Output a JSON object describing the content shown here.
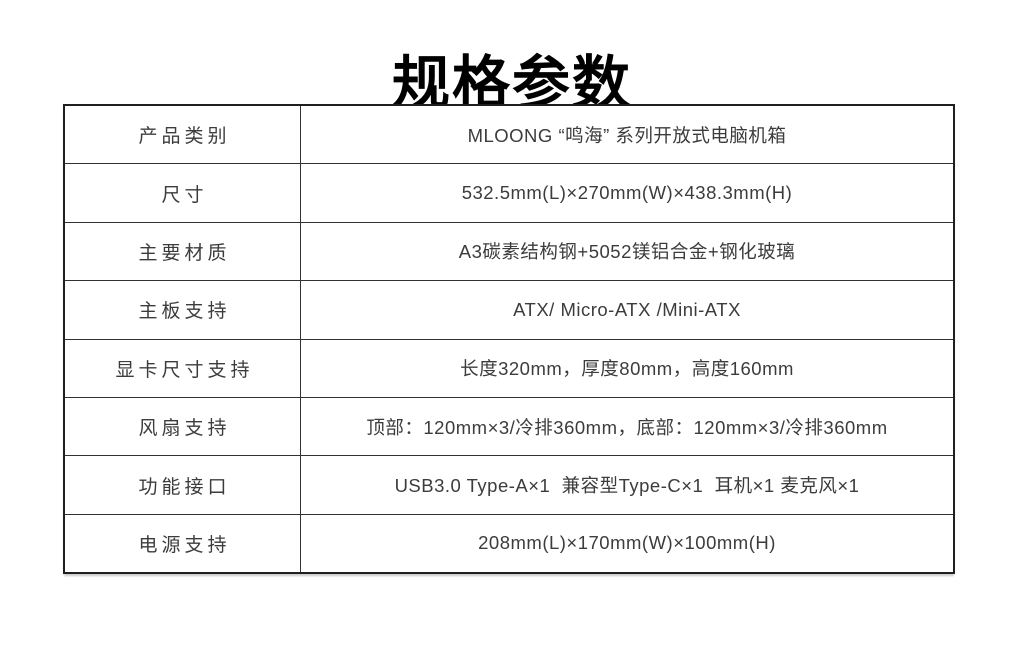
{
  "page": {
    "title": "规格参数"
  },
  "colors": {
    "background": "#ffffff",
    "title_text": "#000000",
    "table_border": "#1f1f1f",
    "grid_line": "#323232",
    "cell_text": "#3c3c3c"
  },
  "spec_table": {
    "rows": [
      {
        "label": "产品类别",
        "value": "MLOONG “鸣海” 系列开放式电脑机箱"
      },
      {
        "label": "尺寸",
        "value": "532.5mm(L)×270mm(W)×438.3mm(H)"
      },
      {
        "label": "主要材质",
        "value": "A3碳素结构钢+5052镁铝合金+钢化玻璃"
      },
      {
        "label": "主板支持",
        "value": "ATX/ Micro-ATX /Mini-ATX"
      },
      {
        "label": "显卡尺寸支持",
        "value": "长度320mm，厚度80mm，高度160mm"
      },
      {
        "label": "风扇支持",
        "value": "顶部：120mm×3/冷排360mm，底部：120mm×3/冷排360mm"
      },
      {
        "label": "功能接口",
        "value": "USB3.0 Type-A×1  兼容型Type-C×1  耳机×1 麦克风×1"
      },
      {
        "label": "电源支持",
        "value": "208mm(L)×170mm(W)×100mm(H)"
      }
    ]
  }
}
